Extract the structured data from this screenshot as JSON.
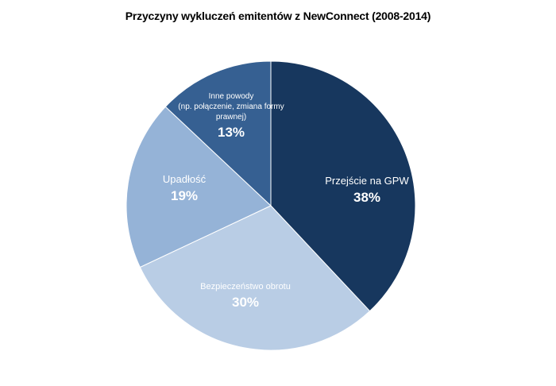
{
  "chart_data": {
    "type": "pie",
    "title": "Przyczyny wykluczeń emitentów z NewConnect (2008-2014)",
    "start_angle_deg": 0,
    "direction": "clockwise",
    "legend": "none",
    "slices": [
      {
        "label": [
          "Przejście na GPW"
        ],
        "value": 38,
        "value_label": "38%",
        "color": "#17375e"
      },
      {
        "label": [
          "Bezpieczeństwo obrotu"
        ],
        "value": 30,
        "value_label": "30%",
        "color": "#b9cde5"
      },
      {
        "label": [
          "Upadłość"
        ],
        "value": 19,
        "value_label": "19%",
        "color": "#95b3d7"
      },
      {
        "label": [
          "Inne powody",
          "(np. połączenie, zmiana formy",
          "prawnej)"
        ],
        "value": 13,
        "value_label": "13%",
        "color": "#366092"
      }
    ]
  }
}
